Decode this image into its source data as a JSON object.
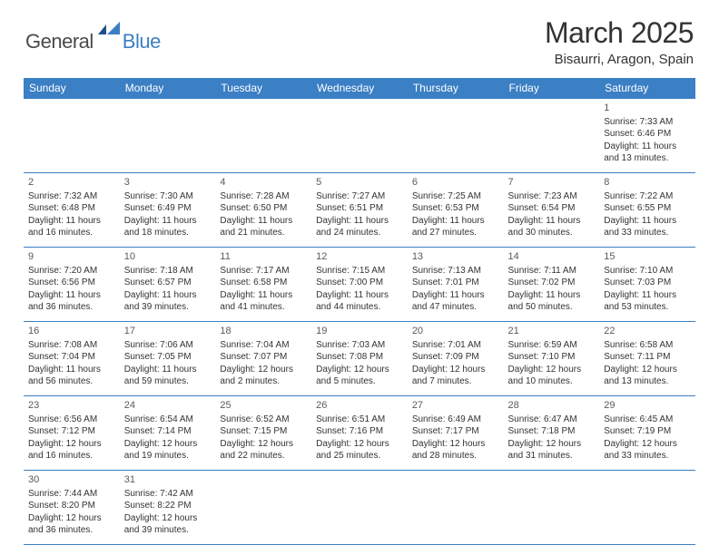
{
  "logo": {
    "general": "General",
    "blue": "Blue",
    "generalColor": "#4a4a4a",
    "blueColor": "#3b7fc4",
    "iconColor": "#1e4f8a"
  },
  "title": {
    "month": "March 2025",
    "location": "Bisaurri, Aragon, Spain"
  },
  "theme": {
    "headerBg": "#3b7fc4",
    "headerText": "#ffffff",
    "borderColor": "#3b7fc4",
    "bodyText": "#333333",
    "dayNumColor": "#5a5a5a"
  },
  "days": [
    "Sunday",
    "Monday",
    "Tuesday",
    "Wednesday",
    "Thursday",
    "Friday",
    "Saturday"
  ],
  "weeks": [
    [
      null,
      null,
      null,
      null,
      null,
      null,
      {
        "n": "1",
        "sr": "Sunrise: 7:33 AM",
        "ss": "Sunset: 6:46 PM",
        "d1": "Daylight: 11 hours",
        "d2": "and 13 minutes."
      }
    ],
    [
      {
        "n": "2",
        "sr": "Sunrise: 7:32 AM",
        "ss": "Sunset: 6:48 PM",
        "d1": "Daylight: 11 hours",
        "d2": "and 16 minutes."
      },
      {
        "n": "3",
        "sr": "Sunrise: 7:30 AM",
        "ss": "Sunset: 6:49 PM",
        "d1": "Daylight: 11 hours",
        "d2": "and 18 minutes."
      },
      {
        "n": "4",
        "sr": "Sunrise: 7:28 AM",
        "ss": "Sunset: 6:50 PM",
        "d1": "Daylight: 11 hours",
        "d2": "and 21 minutes."
      },
      {
        "n": "5",
        "sr": "Sunrise: 7:27 AM",
        "ss": "Sunset: 6:51 PM",
        "d1": "Daylight: 11 hours",
        "d2": "and 24 minutes."
      },
      {
        "n": "6",
        "sr": "Sunrise: 7:25 AM",
        "ss": "Sunset: 6:53 PM",
        "d1": "Daylight: 11 hours",
        "d2": "and 27 minutes."
      },
      {
        "n": "7",
        "sr": "Sunrise: 7:23 AM",
        "ss": "Sunset: 6:54 PM",
        "d1": "Daylight: 11 hours",
        "d2": "and 30 minutes."
      },
      {
        "n": "8",
        "sr": "Sunrise: 7:22 AM",
        "ss": "Sunset: 6:55 PM",
        "d1": "Daylight: 11 hours",
        "d2": "and 33 minutes."
      }
    ],
    [
      {
        "n": "9",
        "sr": "Sunrise: 7:20 AM",
        "ss": "Sunset: 6:56 PM",
        "d1": "Daylight: 11 hours",
        "d2": "and 36 minutes."
      },
      {
        "n": "10",
        "sr": "Sunrise: 7:18 AM",
        "ss": "Sunset: 6:57 PM",
        "d1": "Daylight: 11 hours",
        "d2": "and 39 minutes."
      },
      {
        "n": "11",
        "sr": "Sunrise: 7:17 AM",
        "ss": "Sunset: 6:58 PM",
        "d1": "Daylight: 11 hours",
        "d2": "and 41 minutes."
      },
      {
        "n": "12",
        "sr": "Sunrise: 7:15 AM",
        "ss": "Sunset: 7:00 PM",
        "d1": "Daylight: 11 hours",
        "d2": "and 44 minutes."
      },
      {
        "n": "13",
        "sr": "Sunrise: 7:13 AM",
        "ss": "Sunset: 7:01 PM",
        "d1": "Daylight: 11 hours",
        "d2": "and 47 minutes."
      },
      {
        "n": "14",
        "sr": "Sunrise: 7:11 AM",
        "ss": "Sunset: 7:02 PM",
        "d1": "Daylight: 11 hours",
        "d2": "and 50 minutes."
      },
      {
        "n": "15",
        "sr": "Sunrise: 7:10 AM",
        "ss": "Sunset: 7:03 PM",
        "d1": "Daylight: 11 hours",
        "d2": "and 53 minutes."
      }
    ],
    [
      {
        "n": "16",
        "sr": "Sunrise: 7:08 AM",
        "ss": "Sunset: 7:04 PM",
        "d1": "Daylight: 11 hours",
        "d2": "and 56 minutes."
      },
      {
        "n": "17",
        "sr": "Sunrise: 7:06 AM",
        "ss": "Sunset: 7:05 PM",
        "d1": "Daylight: 11 hours",
        "d2": "and 59 minutes."
      },
      {
        "n": "18",
        "sr": "Sunrise: 7:04 AM",
        "ss": "Sunset: 7:07 PM",
        "d1": "Daylight: 12 hours",
        "d2": "and 2 minutes."
      },
      {
        "n": "19",
        "sr": "Sunrise: 7:03 AM",
        "ss": "Sunset: 7:08 PM",
        "d1": "Daylight: 12 hours",
        "d2": "and 5 minutes."
      },
      {
        "n": "20",
        "sr": "Sunrise: 7:01 AM",
        "ss": "Sunset: 7:09 PM",
        "d1": "Daylight: 12 hours",
        "d2": "and 7 minutes."
      },
      {
        "n": "21",
        "sr": "Sunrise: 6:59 AM",
        "ss": "Sunset: 7:10 PM",
        "d1": "Daylight: 12 hours",
        "d2": "and 10 minutes."
      },
      {
        "n": "22",
        "sr": "Sunrise: 6:58 AM",
        "ss": "Sunset: 7:11 PM",
        "d1": "Daylight: 12 hours",
        "d2": "and 13 minutes."
      }
    ],
    [
      {
        "n": "23",
        "sr": "Sunrise: 6:56 AM",
        "ss": "Sunset: 7:12 PM",
        "d1": "Daylight: 12 hours",
        "d2": "and 16 minutes."
      },
      {
        "n": "24",
        "sr": "Sunrise: 6:54 AM",
        "ss": "Sunset: 7:14 PM",
        "d1": "Daylight: 12 hours",
        "d2": "and 19 minutes."
      },
      {
        "n": "25",
        "sr": "Sunrise: 6:52 AM",
        "ss": "Sunset: 7:15 PM",
        "d1": "Daylight: 12 hours",
        "d2": "and 22 minutes."
      },
      {
        "n": "26",
        "sr": "Sunrise: 6:51 AM",
        "ss": "Sunset: 7:16 PM",
        "d1": "Daylight: 12 hours",
        "d2": "and 25 minutes."
      },
      {
        "n": "27",
        "sr": "Sunrise: 6:49 AM",
        "ss": "Sunset: 7:17 PM",
        "d1": "Daylight: 12 hours",
        "d2": "and 28 minutes."
      },
      {
        "n": "28",
        "sr": "Sunrise: 6:47 AM",
        "ss": "Sunset: 7:18 PM",
        "d1": "Daylight: 12 hours",
        "d2": "and 31 minutes."
      },
      {
        "n": "29",
        "sr": "Sunrise: 6:45 AM",
        "ss": "Sunset: 7:19 PM",
        "d1": "Daylight: 12 hours",
        "d2": "and 33 minutes."
      }
    ],
    [
      {
        "n": "30",
        "sr": "Sunrise: 7:44 AM",
        "ss": "Sunset: 8:20 PM",
        "d1": "Daylight: 12 hours",
        "d2": "and 36 minutes."
      },
      {
        "n": "31",
        "sr": "Sunrise: 7:42 AM",
        "ss": "Sunset: 8:22 PM",
        "d1": "Daylight: 12 hours",
        "d2": "and 39 minutes."
      },
      null,
      null,
      null,
      null,
      null
    ]
  ]
}
